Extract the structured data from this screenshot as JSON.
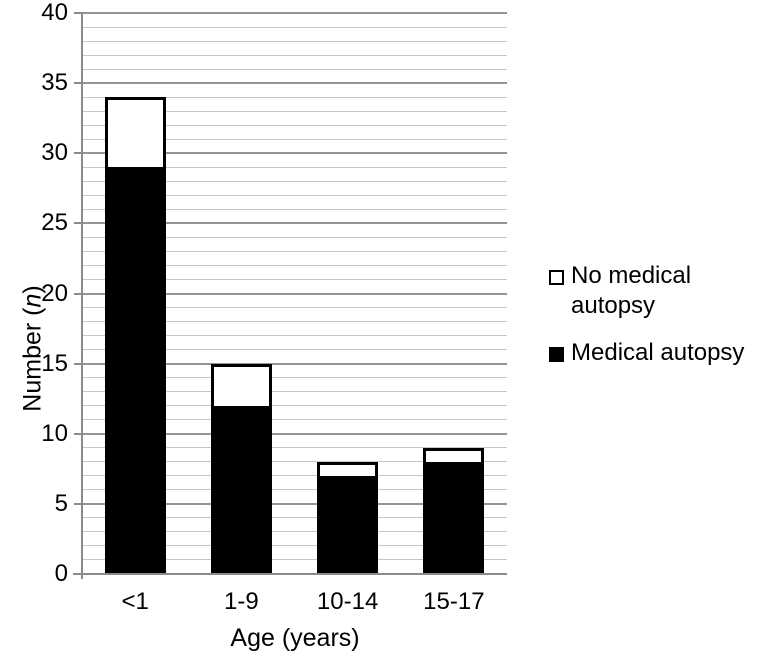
{
  "chart_data": {
    "type": "bar",
    "stacked": true,
    "title": "",
    "xlabel": "Age (years)",
    "ylabel": "Number (n)",
    "ylabel_parts": {
      "prefix": "Number (",
      "italic": "n",
      "suffix": ")"
    },
    "categories": [
      "<1",
      "1-9",
      "10-14",
      "15-17"
    ],
    "series": [
      {
        "name": "Medical autopsy",
        "color": "#000000",
        "values": [
          29,
          12,
          7,
          8
        ]
      },
      {
        "name": "No medical autopsy",
        "color": "#ffffff",
        "values": [
          5,
          3,
          1,
          1
        ]
      }
    ],
    "stacked_totals": [
      34,
      15,
      8,
      9
    ],
    "ylim": [
      0,
      40
    ],
    "yticks_major": [
      0,
      5,
      10,
      15,
      20,
      25,
      30,
      35,
      40
    ],
    "ygrid_minor_step": 1,
    "grid": "horizontal",
    "legend_position": "right"
  },
  "legend": {
    "items": [
      {
        "label": "No medical autopsy",
        "swatch": "#ffffff"
      },
      {
        "label": "Medical autopsy",
        "swatch": "#000000"
      }
    ]
  },
  "colors": {
    "grid_minor": "#c6c6c6",
    "grid_major": "#949494",
    "axis": "#8a8a8a",
    "bar_border": "#000000",
    "text": "#000000",
    "background": "#ffffff"
  }
}
